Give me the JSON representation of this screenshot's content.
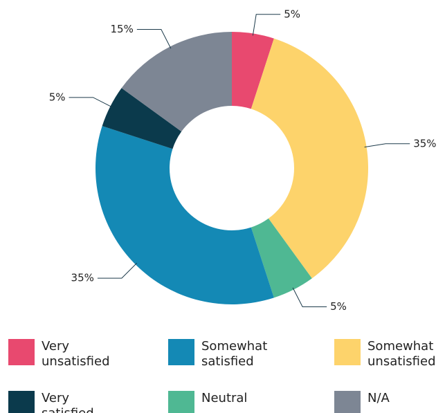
{
  "chart_data": {
    "type": "donut",
    "categories": [
      "Very unsatisfied",
      "Somewhat unsatisfied",
      "Neutral",
      "Somewhat satisfied",
      "Very satisfied",
      "N/A"
    ],
    "values": [
      5,
      35,
      5,
      35,
      5,
      15
    ],
    "value_labels": [
      "5%",
      "35%",
      "5%",
      "35%",
      "5%",
      "15%"
    ],
    "colors": [
      "#e8496f",
      "#fdd36b",
      "#4fb893",
      "#1489b5",
      "#0b3a4c",
      "#7d8694"
    ],
    "legend": "bottom"
  }
}
